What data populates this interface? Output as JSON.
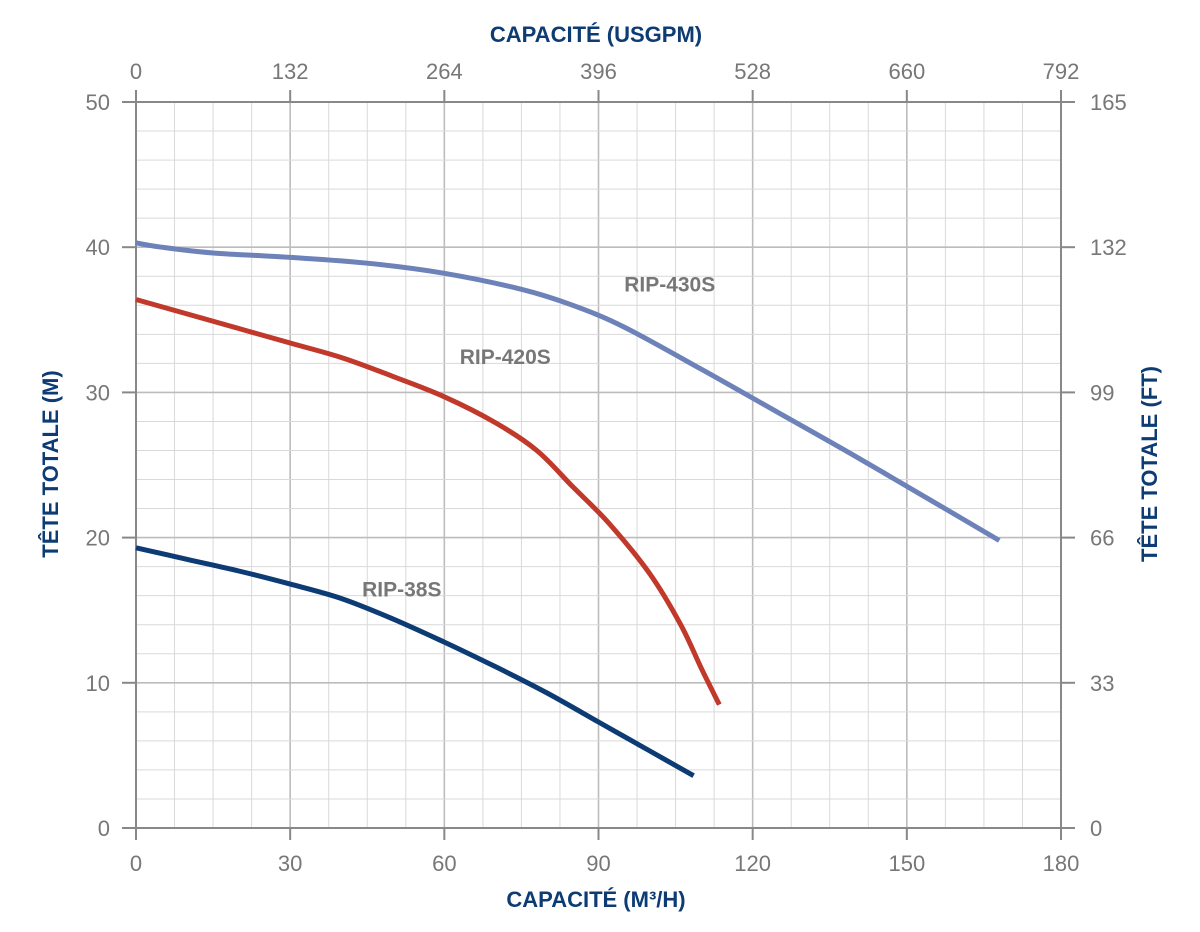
{
  "chart_data": {
    "type": "line",
    "grid": true,
    "axes": {
      "x_bottom": {
        "label": "CAPACITÉ (M³/H)",
        "range": [
          0,
          180
        ],
        "ticks": [
          "0",
          "30",
          "60",
          "90",
          "120",
          "150",
          "180"
        ]
      },
      "x_top": {
        "label": "CAPACITÉ (USGPM)",
        "range": [
          0,
          792
        ],
        "ticks": [
          "0",
          "132",
          "264",
          "396",
          "528",
          "660",
          "792"
        ]
      },
      "y_left": {
        "label": "TÊTE TOTALE (M)",
        "range": [
          0,
          50
        ],
        "ticks": [
          "0",
          "10",
          "20",
          "30",
          "40",
          "50"
        ]
      },
      "y_right": {
        "label": "TÊTE TOTALE (FT)",
        "range": [
          0,
          165
        ],
        "ticks": [
          "0",
          "33",
          "66",
          "99",
          "132",
          "165"
        ]
      }
    },
    "series": [
      {
        "name": "RIP-430S",
        "color": "#6d82b8",
        "label_at": [
          95,
          37.5
        ],
        "x": [
          0,
          5,
          15,
          30,
          45,
          60,
          75,
          85,
          95,
          110,
          125,
          140,
          155,
          168
        ],
        "y": [
          40.3,
          40,
          39.6,
          39.3,
          38.9,
          38.2,
          37.1,
          36,
          34.5,
          31.6,
          28.6,
          25.6,
          22.5,
          19.8
        ]
      },
      {
        "name": "RIP-420S",
        "color": "#c0392b",
        "label_at": [
          63,
          32.5
        ],
        "x": [
          0,
          10,
          20,
          30,
          40,
          50,
          60,
          70,
          78,
          85,
          92,
          100,
          106,
          110,
          113.5
        ],
        "y": [
          36.4,
          35.4,
          34.4,
          33.4,
          32.4,
          31.1,
          29.7,
          27.9,
          26,
          23.5,
          21,
          17.5,
          14,
          11,
          8.5
        ]
      },
      {
        "name": "RIP-38S",
        "color": "#0d3b74",
        "label_at": [
          44,
          16.5
        ],
        "x": [
          0,
          10,
          20,
          30,
          40,
          50,
          60,
          70,
          80,
          90,
          100,
          108.5
        ],
        "y": [
          19.3,
          18.5,
          17.7,
          16.8,
          15.8,
          14.4,
          12.8,
          11.1,
          9.3,
          7.3,
          5.3,
          3.6
        ]
      }
    ]
  }
}
